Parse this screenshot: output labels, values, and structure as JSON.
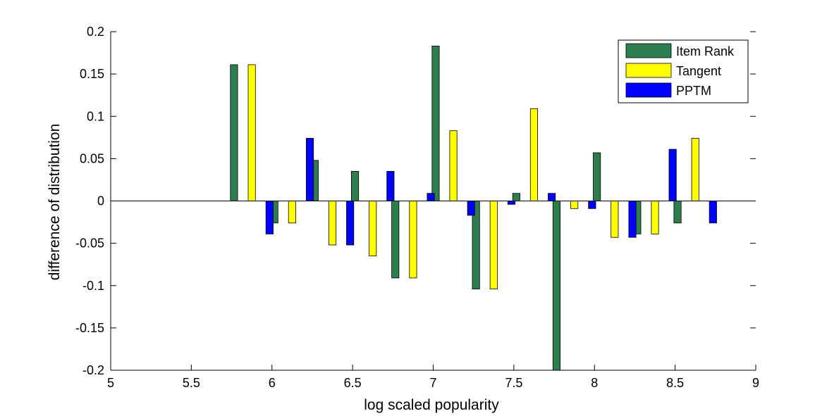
{
  "chart_data": {
    "type": "bar",
    "title": "",
    "xlabel": "log scaled popularity",
    "ylabel": "difference of distribution",
    "xlim": [
      5,
      9
    ],
    "ylim": [
      -0.2,
      0.2
    ],
    "xticks": [
      "5",
      "5.5",
      "6",
      "6.5",
      "7",
      "7.5",
      "8",
      "8.5",
      "9"
    ],
    "yticks": [
      "-0.2",
      "-0.15",
      "-0.1",
      "-0.05",
      "0",
      "0.05",
      "0.1",
      "0.15",
      "0.2"
    ],
    "grid": false,
    "legend_position": "top-right",
    "x": [
      5.875,
      6.125,
      6.375,
      6.625,
      6.875,
      7.125,
      7.375,
      7.625,
      7.875,
      8.125,
      8.375,
      8.625
    ],
    "series": [
      {
        "name": "Item Rank",
        "color": "#2e7d4f",
        "values": [
          0.161,
          -0.026,
          0.048,
          0.035,
          -0.091,
          0.183,
          -0.104,
          0.009,
          -0.2,
          0.057,
          -0.039,
          -0.026
        ]
      },
      {
        "name": "Tangent",
        "color": "#ffff00",
        "values": [
          0.161,
          -0.026,
          -0.052,
          -0.065,
          -0.091,
          0.083,
          -0.104,
          0.109,
          -0.009,
          -0.043,
          -0.039,
          0.074
        ]
      },
      {
        "name": "PPTM",
        "color": "#0000ff",
        "values": [
          -0.039,
          0.074,
          -0.052,
          0.035,
          0.009,
          -0.017,
          -0.004,
          0.009,
          -0.009,
          -0.043,
          0.061,
          -0.026
        ]
      }
    ]
  }
}
